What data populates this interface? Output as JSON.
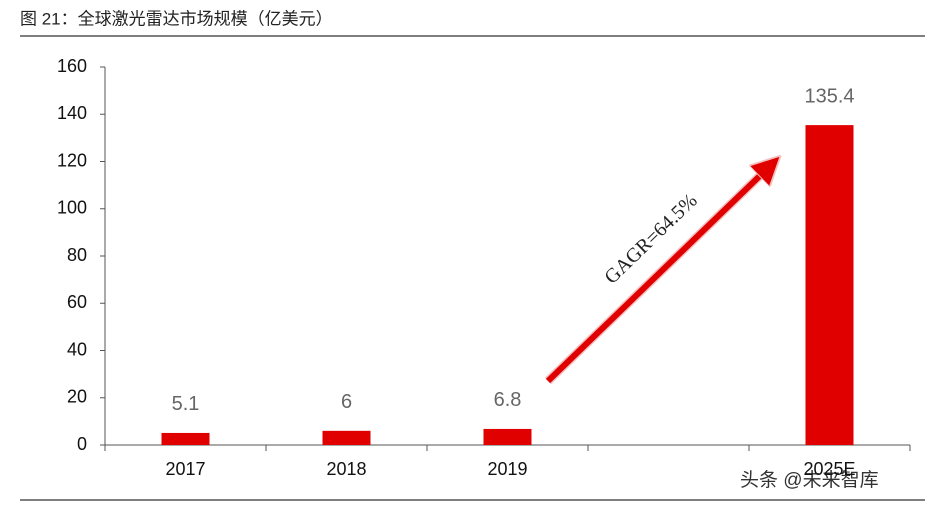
{
  "chart_data": {
    "type": "bar",
    "title": "图 21：全球激光雷达市场规模（亿美元）",
    "categories": [
      "2017",
      "2018",
      "2019",
      null,
      "2025E"
    ],
    "values": [
      5.1,
      6,
      6.8,
      null,
      135.4
    ],
    "color": "#e00000",
    "ylim": [
      0,
      160
    ],
    "yticks": [
      0,
      20,
      40,
      60,
      80,
      100,
      120,
      140,
      160
    ],
    "annotation": "GAGR=64.5%",
    "watermark": "头条 @未来智库"
  }
}
